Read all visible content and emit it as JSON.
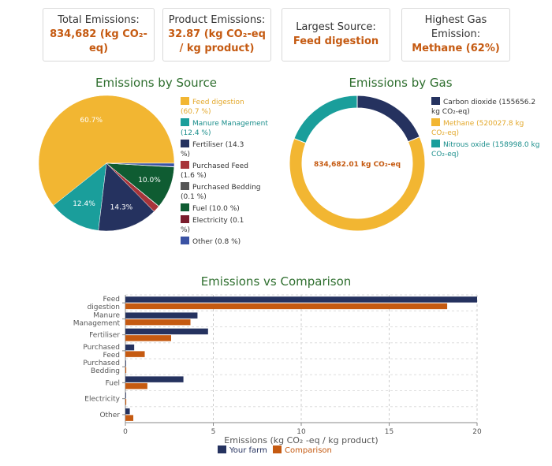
{
  "cards": [
    {
      "label": "Total Emissions:",
      "value": "834,682 (kg CO₂-eq)"
    },
    {
      "label": "Product Emissions:",
      "value": "32.87 (kg CO₂-eq / kg product)"
    },
    {
      "label": "Largest Source:",
      "value": "Feed digestion"
    },
    {
      "label": "Highest Gas Emission:",
      "value": "Methane (62%)"
    }
  ],
  "colors": {
    "feed": "#f2b632",
    "manure": "#1a9e9b",
    "fertiliser": "#25325f",
    "purchased_feed": "#a8343a",
    "bedding": "#555555",
    "fuel": "#0f5c32",
    "electricity": "#7a1c2c",
    "other": "#3b53a4",
    "co2": "#25325f",
    "methane": "#f2b632",
    "n2o": "#1a9e9b",
    "your_farm": "#25325f",
    "comparison": "#c55a11",
    "title": "#2f6f2f"
  },
  "chart_data": [
    {
      "type": "pie",
      "title": "Emissions by Source",
      "slices": [
        {
          "name": "Feed digestion",
          "value": 60.7,
          "legend": "Feed digestion (60.7 %)",
          "label": "60.7%",
          "color_key": "feed"
        },
        {
          "name": "Manure Management",
          "value": 12.4,
          "legend": "Manure Management (12.4 %)",
          "label": "12.4%",
          "color_key": "manure"
        },
        {
          "name": "Fertiliser",
          "value": 14.3,
          "legend": "Fertiliser (14.3 %)",
          "label": "14.3%",
          "color_key": "fertiliser"
        },
        {
          "name": "Purchased Feed",
          "value": 1.6,
          "legend": "Purchased Feed (1.6 %)",
          "label": "",
          "color_key": "purchased_feed"
        },
        {
          "name": "Purchased Bedding",
          "value": 0.1,
          "legend": "Purchased Bedding (0.1 %)",
          "label": "",
          "color_key": "bedding"
        },
        {
          "name": "Fuel",
          "value": 10.0,
          "legend": "Fuel (10.0 %)",
          "label": "10.0%",
          "color_key": "fuel"
        },
        {
          "name": "Electricity",
          "value": 0.1,
          "legend": "Electricity (0.1 %)",
          "label": "",
          "color_key": "electricity"
        },
        {
          "name": "Other",
          "value": 0.8,
          "legend": "Other (0.8 %)",
          "label": "",
          "color_key": "other"
        }
      ]
    },
    {
      "type": "pie",
      "title": "Emissions by Gas",
      "center_label": "834,682.01 kg CO₂-eq",
      "slices": [
        {
          "name": "Carbon dioxide",
          "value": 155656.2,
          "legend": "Carbon dioxide (155656.2 kg CO₂-eq)",
          "color_key": "co2"
        },
        {
          "name": "Methane",
          "value": 520027.8,
          "legend": "Methane (520027.8 kg CO₂-eq)",
          "color_key": "methane"
        },
        {
          "name": "Nitrous oxide",
          "value": 158998.0,
          "legend": "Nitrous oxide (158998.0 kg CO₂-eq)",
          "color_key": "n2o"
        }
      ]
    },
    {
      "type": "bar",
      "orientation": "horizontal",
      "title": "Emissions vs Comparison",
      "xlabel": "Emissions (kg CO₂ -eq / kg product)",
      "xlim": [
        0,
        20
      ],
      "xticks": [
        0,
        5,
        10,
        15,
        20
      ],
      "categories": [
        [
          "Feed",
          "digestion"
        ],
        [
          "Manure",
          "Management"
        ],
        [
          "Fertiliser"
        ],
        [
          "Purchased",
          "Feed"
        ],
        [
          "Purchased",
          "Bedding"
        ],
        [
          "Fuel"
        ],
        [
          "Electricity"
        ],
        [
          "Other"
        ]
      ],
      "series": [
        {
          "name": "Your farm",
          "color_key": "your_farm",
          "values": [
            20.0,
            4.1,
            4.7,
            0.5,
            0.03,
            3.3,
            0.03,
            0.25
          ]
        },
        {
          "name": "Comparison",
          "color_key": "comparison",
          "values": [
            18.3,
            3.7,
            2.6,
            1.1,
            0.05,
            1.25,
            0.05,
            0.45
          ]
        }
      ]
    }
  ]
}
